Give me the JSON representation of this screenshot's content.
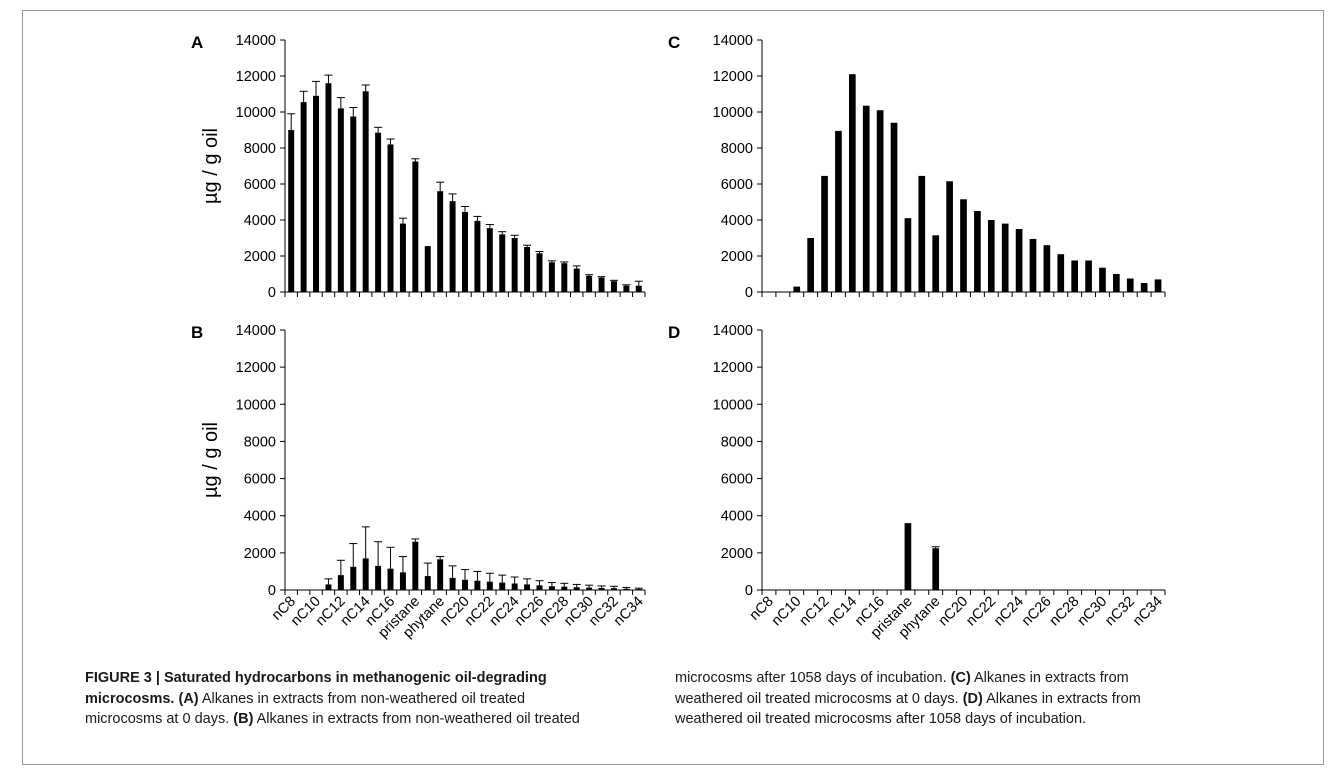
{
  "chart_data": [
    {
      "type": "bar",
      "panel_label": "A",
      "ylabel": "µg / g oil",
      "ylim": [
        0,
        14000
      ],
      "yticks": [
        0,
        2000,
        4000,
        6000,
        8000,
        10000,
        12000,
        14000
      ],
      "categories": [
        "nC8",
        "nC9",
        "nC10",
        "nC11",
        "nC12",
        "nC13",
        "nC14",
        "nC15",
        "nC16",
        "nC17",
        "pristane",
        "nC18",
        "phytane",
        "nC19",
        "nC20",
        "nC21",
        "nC22",
        "nC23",
        "nC24",
        "nC25",
        "nC26",
        "nC27",
        "nC28",
        "nC29",
        "nC30",
        "nC31",
        "nC32",
        "nC33",
        "nC34"
      ],
      "values": [
        9000,
        10550,
        10900,
        11600,
        10200,
        9750,
        11150,
        8850,
        8200,
        3800,
        7250,
        2550,
        5600,
        5050,
        4450,
        3950,
        3550,
        3200,
        3000,
        2500,
        2150,
        1650,
        1600,
        1300,
        900,
        800,
        600,
        350,
        350
      ],
      "errors": [
        900,
        600,
        800,
        450,
        600,
        500,
        350,
        300,
        300,
        300,
        150,
        0,
        500,
        400,
        300,
        250,
        200,
        150,
        150,
        100,
        100,
        80,
        70,
        150,
        60,
        50,
        50,
        50,
        250
      ],
      "xtick_labels_shown": false
    },
    {
      "type": "bar",
      "panel_label": "C",
      "ylabel": "",
      "ylim": [
        0,
        14000
      ],
      "yticks": [
        0,
        2000,
        4000,
        6000,
        8000,
        10000,
        12000,
        14000
      ],
      "categories": [
        "nC8",
        "nC9",
        "nC10",
        "nC11",
        "nC12",
        "nC13",
        "nC14",
        "nC15",
        "nC16",
        "nC17",
        "pristane",
        "nC18",
        "phytane",
        "nC19",
        "nC20",
        "nC21",
        "nC22",
        "nC23",
        "nC24",
        "nC25",
        "nC26",
        "nC27",
        "nC28",
        "nC29",
        "nC30",
        "nC31",
        "nC32",
        "nC33",
        "nC34"
      ],
      "values": [
        0,
        0,
        300,
        3000,
        6450,
        8950,
        12100,
        10350,
        10100,
        9400,
        4100,
        6450,
        3150,
        6150,
        5150,
        4500,
        4000,
        3800,
        3500,
        2950,
        2600,
        2100,
        1750,
        1750,
        1350,
        1000,
        750,
        500,
        700
      ],
      "errors": [],
      "xtick_labels_shown": false
    },
    {
      "type": "bar",
      "panel_label": "B",
      "ylabel": "µg / g oil",
      "ylim": [
        0,
        14000
      ],
      "yticks": [
        0,
        2000,
        4000,
        6000,
        8000,
        10000,
        12000,
        14000
      ],
      "categories": [
        "nC8",
        "nC9",
        "nC10",
        "nC11",
        "nC12",
        "nC13",
        "nC14",
        "nC15",
        "nC16",
        "nC17",
        "pristane",
        "nC18",
        "phytane",
        "nC19",
        "nC20",
        "nC21",
        "nC22",
        "nC23",
        "nC24",
        "nC25",
        "nC26",
        "nC27",
        "nC28",
        "nC29",
        "nC30",
        "nC31",
        "nC32",
        "nC33",
        "nC34"
      ],
      "values": [
        0,
        0,
        0,
        300,
        800,
        1250,
        1700,
        1300,
        1150,
        950,
        2600,
        750,
        1650,
        650,
        550,
        500,
        450,
        400,
        350,
        300,
        250,
        200,
        180,
        150,
        130,
        110,
        100,
        70,
        50
      ],
      "errors": [
        0,
        0,
        0,
        300,
        800,
        1250,
        1700,
        1300,
        1150,
        850,
        150,
        700,
        150,
        650,
        550,
        500,
        450,
        400,
        350,
        300,
        250,
        200,
        180,
        150,
        130,
        110,
        100,
        70,
        50
      ],
      "xtick_labels": [
        "nC8",
        "nC10",
        "nC12",
        "nC14",
        "nC16",
        "pristane",
        "phytane",
        "nC20",
        "nC22",
        "nC24",
        "nC26",
        "nC28",
        "nC30",
        "nC32",
        "nC34"
      ],
      "xtick_label_indices": [
        0,
        2,
        4,
        6,
        8,
        10,
        12,
        14,
        16,
        18,
        20,
        22,
        24,
        26,
        28
      ],
      "xtick_labels_shown": true
    },
    {
      "type": "bar",
      "panel_label": "D",
      "ylabel": "",
      "ylim": [
        0,
        14000
      ],
      "yticks": [
        0,
        2000,
        4000,
        6000,
        8000,
        10000,
        12000,
        14000
      ],
      "categories": [
        "nC8",
        "nC9",
        "nC10",
        "nC11",
        "nC12",
        "nC13",
        "nC14",
        "nC15",
        "nC16",
        "nC17",
        "pristane",
        "nC18",
        "phytane",
        "nC19",
        "nC20",
        "nC21",
        "nC22",
        "nC23",
        "nC24",
        "nC25",
        "nC26",
        "nC27",
        "nC28",
        "nC29",
        "nC30",
        "nC31",
        "nC32",
        "nC33",
        "nC34"
      ],
      "values": [
        0,
        0,
        0,
        0,
        0,
        0,
        0,
        0,
        0,
        0,
        3600,
        0,
        2250,
        0,
        0,
        0,
        0,
        0,
        0,
        0,
        0,
        0,
        0,
        0,
        0,
        0,
        0,
        0,
        0
      ],
      "errors": [
        0,
        0,
        0,
        0,
        0,
        0,
        0,
        0,
        0,
        0,
        0,
        0,
        80,
        0,
        0,
        0,
        0,
        0,
        0,
        0,
        0,
        0,
        0,
        0,
        0,
        0,
        0,
        0,
        0
      ],
      "xtick_labels": [
        "nC8",
        "nC10",
        "nC12",
        "nC14",
        "nC16",
        "pristane",
        "phytane",
        "nC20",
        "nC22",
        "nC24",
        "nC26",
        "nC28",
        "nC30",
        "nC32",
        "nC34"
      ],
      "xtick_label_indices": [
        0,
        2,
        4,
        6,
        8,
        10,
        12,
        14,
        16,
        18,
        20,
        22,
        24,
        26,
        28
      ],
      "xtick_labels_shown": true
    }
  ],
  "caption": {
    "figure_label": "FIGURE 3 | Saturated hydrocarbons in methanogenic oil-degrading microcosms.",
    "left_text": [
      {
        "bold": "(A)",
        "text": " Alkanes in extracts from non-weathered oil treated microcosms at 0 days. "
      },
      {
        "bold": "(B)",
        "text": " Alkanes in extracts from non-weathered oil treated"
      }
    ],
    "right_text": [
      {
        "bold": "",
        "text": "microcosms after 1058 days of incubation. "
      },
      {
        "bold": "(C)",
        "text": " Alkanes in extracts from weathered oil treated microcosms at 0 days. "
      },
      {
        "bold": "(D)",
        "text": " Alkanes in extracts from weathered oil treated microcosms after 1058 days of incubation."
      }
    ]
  }
}
